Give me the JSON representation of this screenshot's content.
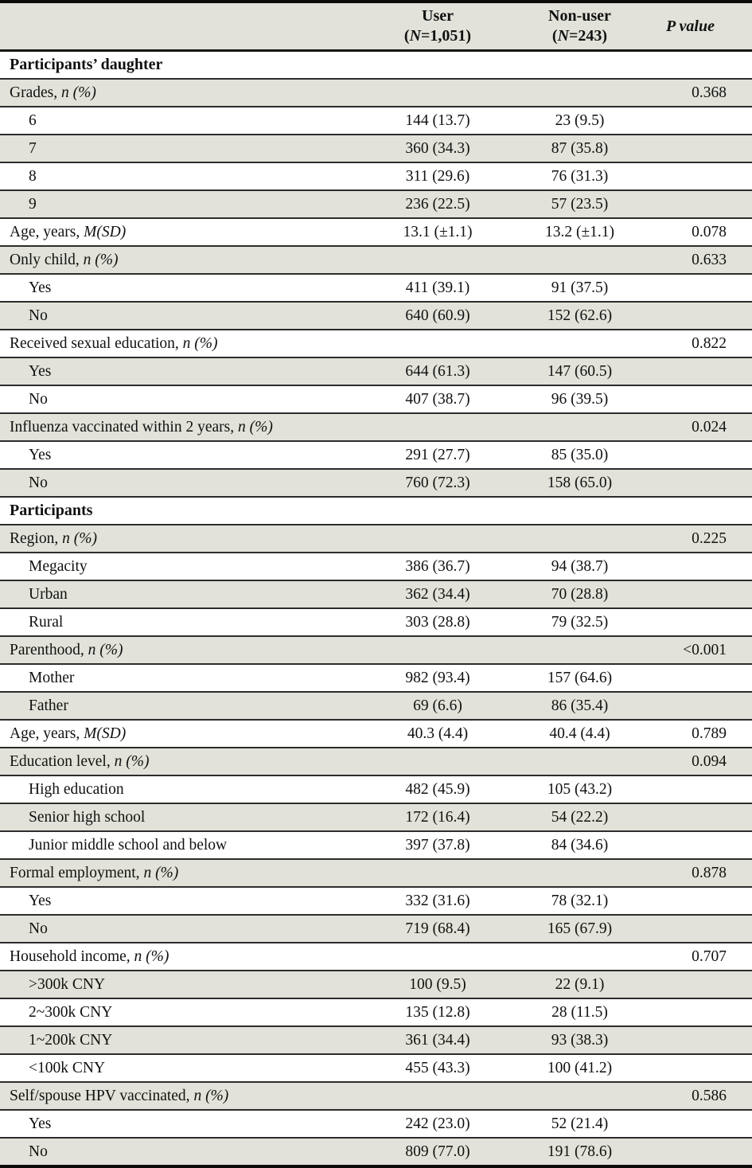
{
  "table": {
    "header": {
      "variable_label": "",
      "user": {
        "line1": "User",
        "pre": "(",
        "n_italic": "N",
        "post": "=1,051)"
      },
      "nonuser": {
        "line1": "Non-user",
        "pre": "(",
        "n_italic": "N",
        "post": "=243)"
      },
      "p_label": "P value"
    },
    "colors": {
      "shaded_row": "#e2e2da",
      "row_rule": "#2c2c2c",
      "frame": "#0b0b0b",
      "text": "#111111"
    },
    "sections": [
      "Participants’ daughter",
      "Participants"
    ],
    "rows": [
      {
        "type": "section",
        "label": "Participants’ daughter",
        "label_italic": "",
        "user": "",
        "nonuser": "",
        "p": ""
      },
      {
        "type": "variable",
        "label": "Grades, ",
        "label_italic": "n (%)",
        "user": "",
        "nonuser": "",
        "p": "0.368"
      },
      {
        "type": "item",
        "label": "6",
        "label_italic": "",
        "user": "144 (13.7)",
        "nonuser": "23 (9.5)",
        "p": ""
      },
      {
        "type": "item",
        "label": "7",
        "label_italic": "",
        "user": "360 (34.3)",
        "nonuser": "87 (35.8)",
        "p": ""
      },
      {
        "type": "item",
        "label": "8",
        "label_italic": "",
        "user": "311 (29.6)",
        "nonuser": "76 (31.3)",
        "p": ""
      },
      {
        "type": "item",
        "label": "9",
        "label_italic": "",
        "user": "236 (22.5)",
        "nonuser": "57 (23.5)",
        "p": ""
      },
      {
        "type": "variable",
        "label": "Age, years, ",
        "label_italic": "M(SD)",
        "user": "13.1 (±1.1)",
        "nonuser": "13.2 (±1.1)",
        "p": "0.078"
      },
      {
        "type": "variable",
        "label": "Only child, ",
        "label_italic": "n (%)",
        "user": "",
        "nonuser": "",
        "p": "0.633"
      },
      {
        "type": "item",
        "label": "Yes",
        "label_italic": "",
        "user": "411 (39.1)",
        "nonuser": "91 (37.5)",
        "p": ""
      },
      {
        "type": "item",
        "label": "No",
        "label_italic": "",
        "user": "640 (60.9)",
        "nonuser": "152 (62.6)",
        "p": ""
      },
      {
        "type": "variable",
        "label": "Received sexual education, ",
        "label_italic": "n (%)",
        "user": "",
        "nonuser": "",
        "p": "0.822"
      },
      {
        "type": "item",
        "label": "Yes",
        "label_italic": "",
        "user": "644 (61.3)",
        "nonuser": "147 (60.5)",
        "p": ""
      },
      {
        "type": "item",
        "label": "No",
        "label_italic": "",
        "user": "407 (38.7)",
        "nonuser": "96 (39.5)",
        "p": ""
      },
      {
        "type": "variable",
        "label": "Influenza vaccinated within 2 years, ",
        "label_italic": "n (%)",
        "user": "",
        "nonuser": "",
        "p": "0.024"
      },
      {
        "type": "item",
        "label": "Yes",
        "label_italic": "",
        "user": "291 (27.7)",
        "nonuser": "85 (35.0)",
        "p": ""
      },
      {
        "type": "item",
        "label": "No",
        "label_italic": "",
        "user": "760 (72.3)",
        "nonuser": "158 (65.0)",
        "p": ""
      },
      {
        "type": "section",
        "label": "Participants",
        "label_italic": "",
        "user": "",
        "nonuser": "",
        "p": ""
      },
      {
        "type": "variable",
        "label": "Region, ",
        "label_italic": "n (%)",
        "user": "",
        "nonuser": "",
        "p": "0.225"
      },
      {
        "type": "item",
        "label": "Megacity",
        "label_italic": "",
        "user": "386 (36.7)",
        "nonuser": "94 (38.7)",
        "p": ""
      },
      {
        "type": "item",
        "label": "Urban",
        "label_italic": "",
        "user": "362 (34.4)",
        "nonuser": "70 (28.8)",
        "p": ""
      },
      {
        "type": "item",
        "label": "Rural",
        "label_italic": "",
        "user": "303 (28.8)",
        "nonuser": "79 (32.5)",
        "p": ""
      },
      {
        "type": "variable",
        "label": "Parenthood, ",
        "label_italic": "n (%)",
        "user": "",
        "nonuser": "",
        "p": "<0.001"
      },
      {
        "type": "item",
        "label": "Mother",
        "label_italic": "",
        "user": "982 (93.4)",
        "nonuser": "157 (64.6)",
        "p": ""
      },
      {
        "type": "item",
        "label": "Father",
        "label_italic": "",
        "user": "69 (6.6)",
        "nonuser": "86 (35.4)",
        "p": ""
      },
      {
        "type": "variable",
        "label": "Age, years, ",
        "label_italic": "M(SD)",
        "user": "40.3 (4.4)",
        "nonuser": "40.4 (4.4)",
        "p": "0.789"
      },
      {
        "type": "variable",
        "label": "Education level, ",
        "label_italic": "n (%)",
        "user": "",
        "nonuser": "",
        "p": "0.094"
      },
      {
        "type": "item",
        "label": "High education",
        "label_italic": "",
        "user": "482 (45.9)",
        "nonuser": "105 (43.2)",
        "p": ""
      },
      {
        "type": "item",
        "label": "Senior high school",
        "label_italic": "",
        "user": "172 (16.4)",
        "nonuser": "54 (22.2)",
        "p": ""
      },
      {
        "type": "item",
        "label": "Junior middle school and below",
        "label_italic": "",
        "user": "397 (37.8)",
        "nonuser": "84 (34.6)",
        "p": ""
      },
      {
        "type": "variable",
        "label": "Formal employment, ",
        "label_italic": "n (%)",
        "user": "",
        "nonuser": "",
        "p": "0.878"
      },
      {
        "type": "item",
        "label": "Yes",
        "label_italic": "",
        "user": "332 (31.6)",
        "nonuser": "78 (32.1)",
        "p": ""
      },
      {
        "type": "item",
        "label": "No",
        "label_italic": "",
        "user": "719 (68.4)",
        "nonuser": "165 (67.9)",
        "p": ""
      },
      {
        "type": "variable",
        "label": "Household income, ",
        "label_italic": "n (%)",
        "user": "",
        "nonuser": "",
        "p": "0.707"
      },
      {
        "type": "item",
        "label": ">300k CNY",
        "label_italic": "",
        "user": "100 (9.5)",
        "nonuser": "22 (9.1)",
        "p": ""
      },
      {
        "type": "item",
        "label": "2~300k CNY",
        "label_italic": "",
        "user": "135 (12.8)",
        "nonuser": "28 (11.5)",
        "p": ""
      },
      {
        "type": "item",
        "label": "1~200k CNY",
        "label_italic": "",
        "user": "361 (34.4)",
        "nonuser": "93 (38.3)",
        "p": ""
      },
      {
        "type": "item",
        "label": "<100k CNY",
        "label_italic": "",
        "user": "455 (43.3)",
        "nonuser": "100 (41.2)",
        "p": ""
      },
      {
        "type": "variable",
        "label": "Self/spouse HPV vaccinated, ",
        "label_italic": "n (%)",
        "user": "",
        "nonuser": "",
        "p": "0.586"
      },
      {
        "type": "item",
        "label": "Yes",
        "label_italic": "",
        "user": "242 (23.0)",
        "nonuser": "52 (21.4)",
        "p": ""
      },
      {
        "type": "item",
        "label": "No",
        "label_italic": "",
        "user": "809 (77.0)",
        "nonuser": "191 (78.6)",
        "p": ""
      }
    ]
  }
}
